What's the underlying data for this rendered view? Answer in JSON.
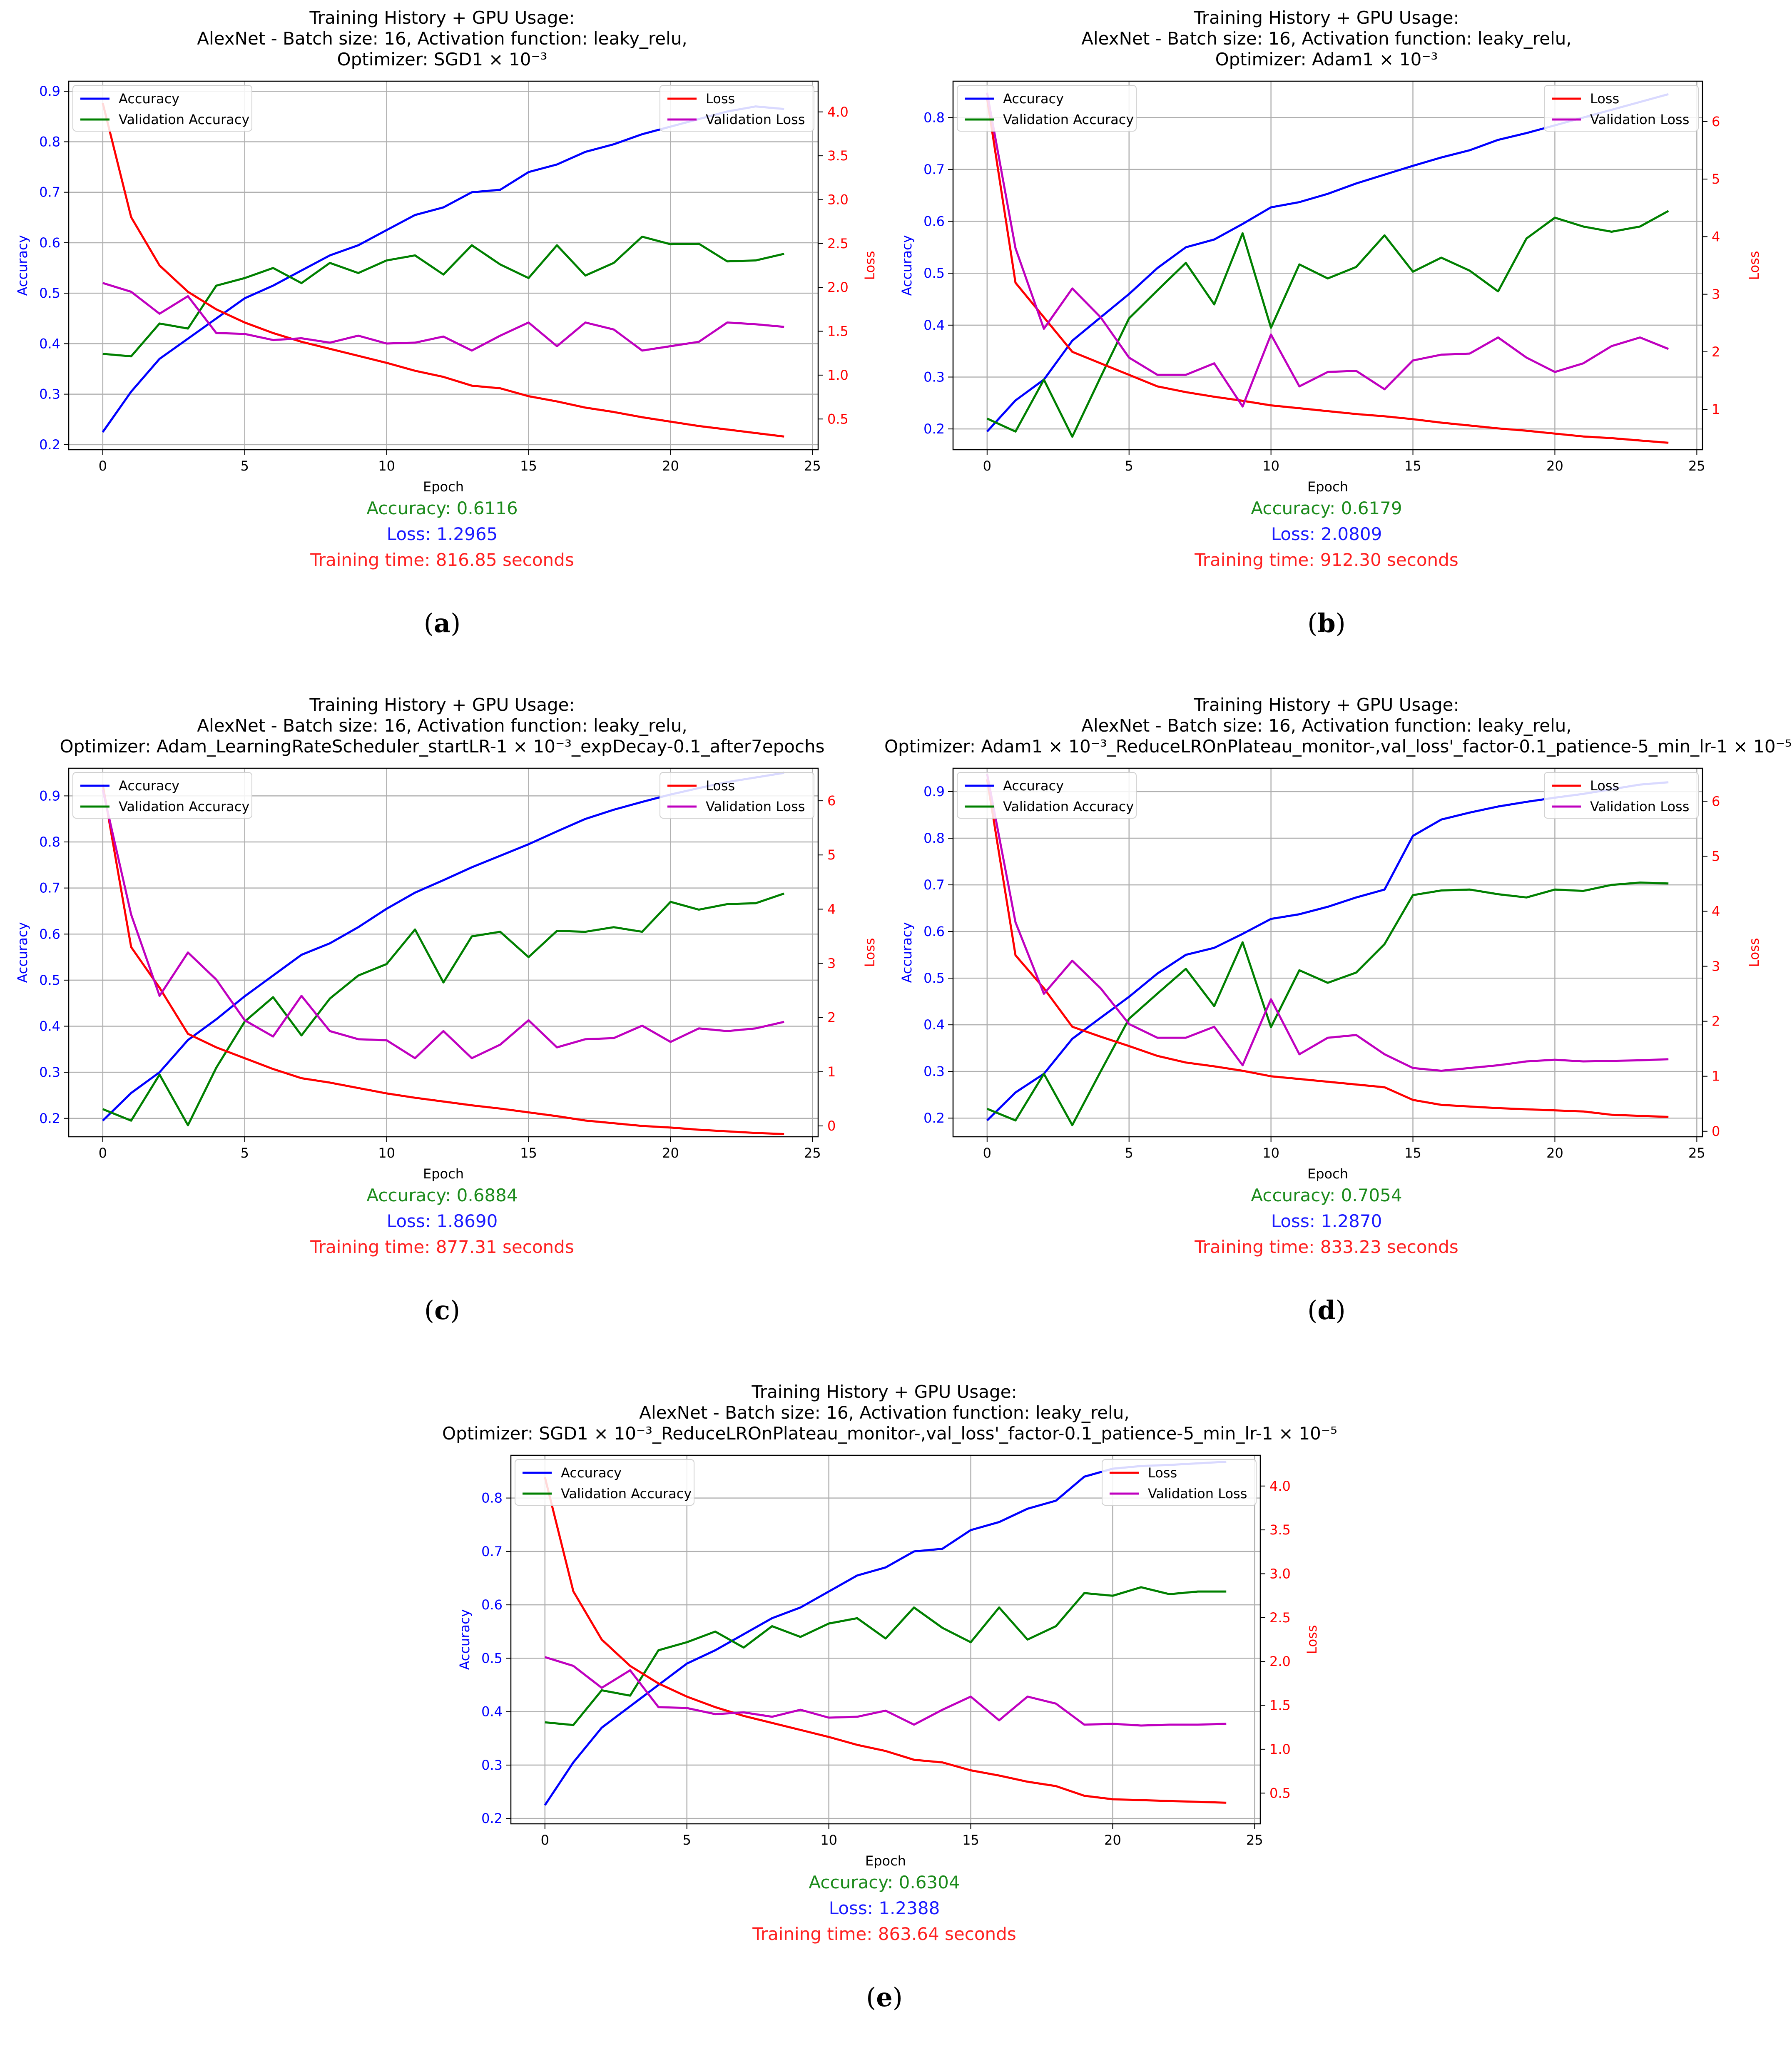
{
  "colors": {
    "accuracy": "#0000ff",
    "val_accuracy": "#008000",
    "loss": "#ff0000",
    "val_loss": "#bf00bf",
    "summary_accuracy": "#1a8a1a",
    "summary_loss": "#1a1aff",
    "summary_time": "#ff2020"
  },
  "panels": [
    {
      "caption_label": "a",
      "title_lines": [
        "Training History + GPU Usage:",
        "AlexNet - Batch size: 16, Activation function: leaky_relu,",
        "Optimizer: SGD1 × 10⁻³"
      ],
      "summary": {
        "accuracy": "Accuracy: 0.6116",
        "loss": "Loss: 1.2965",
        "time": "Training time: 816.85 seconds"
      }
    },
    {
      "caption_label": "b",
      "title_lines": [
        "Training History + GPU Usage:",
        "AlexNet - Batch size: 16, Activation function: leaky_relu,",
        "Optimizer: Adam1 × 10⁻³"
      ],
      "summary": {
        "accuracy": "Accuracy: 0.6179",
        "loss": "Loss: 2.0809",
        "time": "Training time: 912.30 seconds"
      }
    },
    {
      "caption_label": "c",
      "title_lines": [
        "Training History + GPU Usage:",
        "AlexNet - Batch size: 16, Activation function: leaky_relu,",
        "Optimizer: Adam_LearningRateScheduler_startLR-1 × 10⁻³_expDecay-0.1_after7epochs"
      ],
      "summary": {
        "accuracy": "Accuracy: 0.6884",
        "loss": "Loss: 1.8690",
        "time": "Training time: 877.31 seconds"
      }
    },
    {
      "caption_label": "d",
      "title_lines": [
        "Training History + GPU Usage:",
        "AlexNet - Batch size: 16, Activation function: leaky_relu,",
        "Optimizer: Adam1 × 10⁻³_ReduceLROnPlateau_monitor-,val_loss'_factor-0.1_patience-5_min_lr-1 × 10⁻⁵"
      ],
      "summary": {
        "accuracy": "Accuracy: 0.7054",
        "loss": "Loss: 1.2870",
        "time": "Training time: 833.23 seconds"
      }
    },
    {
      "caption_label": "e",
      "title_lines": [
        "Training History + GPU Usage:",
        "AlexNet - Batch size: 16, Activation function: leaky_relu,",
        "Optimizer: SGD1 × 10⁻³_ReduceLROnPlateau_monitor-,val_loss'_factor-0.1_patience-5_min_lr-1 × 10⁻⁵"
      ],
      "summary": {
        "accuracy": "Accuracy: 0.6304",
        "loss": "Loss: 1.2388",
        "time": "Training time: 863.64 seconds"
      }
    }
  ],
  "chart_data": [
    {
      "type": "line",
      "xlabel": "Epoch",
      "ylabel": "Accuracy",
      "y2label": "Loss",
      "xlim": [
        -1.2,
        25.2
      ],
      "xticks": [
        0,
        5,
        10,
        15,
        20,
        25
      ],
      "ylim": [
        0.19,
        0.92
      ],
      "yticks": [
        0.2,
        0.3,
        0.4,
        0.5,
        0.6,
        0.7,
        0.8,
        0.9
      ],
      "y2lim": [
        0.15,
        4.35
      ],
      "y2ticks": [
        0.5,
        1.0,
        1.5,
        2.0,
        2.5,
        3.0,
        3.5,
        4.0
      ],
      "grid": true,
      "legend_left": "top-left",
      "legend_right": "top-right",
      "x": [
        0,
        1,
        2,
        3,
        4,
        5,
        6,
        7,
        8,
        9,
        10,
        11,
        12,
        13,
        14,
        15,
        16,
        17,
        18,
        19,
        20,
        21,
        22,
        23,
        24
      ],
      "series": [
        {
          "name": "Accuracy",
          "axis": "left",
          "color": "#0000ff",
          "values": [
            0.225,
            0.305,
            0.37,
            0.41,
            0.45,
            0.49,
            0.515,
            0.545,
            0.575,
            0.595,
            0.625,
            0.655,
            0.67,
            0.7,
            0.705,
            0.74,
            0.755,
            0.78,
            0.795,
            0.815,
            0.83,
            0.845,
            0.86,
            0.87,
            0.865
          ]
        },
        {
          "name": "Validation Accuracy",
          "axis": "left",
          "color": "#008000",
          "values": [
            0.38,
            0.375,
            0.44,
            0.43,
            0.515,
            0.53,
            0.55,
            0.52,
            0.56,
            0.54,
            0.565,
            0.575,
            0.537,
            0.595,
            0.557,
            0.53,
            0.595,
            0.535,
            0.56,
            0.612,
            0.597,
            0.598,
            0.563,
            0.565,
            0.578
          ]
        },
        {
          "name": "Loss",
          "axis": "right",
          "color": "#ff0000",
          "values": [
            4.1,
            2.8,
            2.25,
            1.95,
            1.75,
            1.6,
            1.48,
            1.38,
            1.3,
            1.22,
            1.14,
            1.05,
            0.98,
            0.88,
            0.85,
            0.76,
            0.7,
            0.63,
            0.58,
            0.52,
            0.47,
            0.42,
            0.38,
            0.34,
            0.3
          ]
        },
        {
          "name": "Validation Loss",
          "axis": "right",
          "color": "#bf00bf",
          "values": [
            2.05,
            1.95,
            1.7,
            1.9,
            1.48,
            1.47,
            1.4,
            1.42,
            1.37,
            1.45,
            1.36,
            1.37,
            1.44,
            1.28,
            1.45,
            1.6,
            1.33,
            1.6,
            1.52,
            1.28,
            1.33,
            1.38,
            1.6,
            1.58,
            1.55
          ]
        }
      ]
    },
    {
      "type": "line",
      "xlabel": "Epoch",
      "ylabel": "Accuracy",
      "y2label": "Loss",
      "xlim": [
        -1.2,
        25.2
      ],
      "xticks": [
        0,
        5,
        10,
        15,
        20,
        25
      ],
      "ylim": [
        0.16,
        0.87
      ],
      "yticks": [
        0.2,
        0.3,
        0.4,
        0.5,
        0.6,
        0.7,
        0.8
      ],
      "y2lim": [
        0.3,
        6.7
      ],
      "y2ticks": [
        1,
        2,
        3,
        4,
        5,
        6
      ],
      "grid": true,
      "legend_left": "top-left",
      "legend_right": "top-right",
      "x": [
        0,
        1,
        2,
        3,
        4,
        5,
        6,
        7,
        8,
        9,
        10,
        11,
        12,
        13,
        14,
        15,
        16,
        17,
        18,
        19,
        20,
        21,
        22,
        23,
        24
      ],
      "series": [
        {
          "name": "Accuracy",
          "axis": "left",
          "color": "#0000ff",
          "values": [
            0.195,
            0.255,
            0.295,
            0.37,
            0.415,
            0.46,
            0.51,
            0.55,
            0.565,
            0.595,
            0.627,
            0.637,
            0.653,
            0.673,
            0.69,
            0.707,
            0.723,
            0.737,
            0.757,
            0.77,
            0.785,
            0.8,
            0.815,
            0.83,
            0.845
          ]
        },
        {
          "name": "Validation Accuracy",
          "axis": "left",
          "color": "#008000",
          "values": [
            0.22,
            0.195,
            0.295,
            0.185,
            0.3,
            0.413,
            0.467,
            0.52,
            0.44,
            0.577,
            0.395,
            0.517,
            0.49,
            0.512,
            0.573,
            0.503,
            0.53,
            0.505,
            0.465,
            0.567,
            0.607,
            0.59,
            0.58,
            0.59,
            0.62
          ]
        },
        {
          "name": "Loss",
          "axis": "right",
          "color": "#ff0000",
          "values": [
            6.4,
            3.2,
            2.6,
            2.0,
            1.8,
            1.6,
            1.4,
            1.3,
            1.22,
            1.15,
            1.07,
            1.02,
            0.97,
            0.92,
            0.88,
            0.83,
            0.77,
            0.72,
            0.67,
            0.63,
            0.58,
            0.53,
            0.5,
            0.46,
            0.42
          ]
        },
        {
          "name": "Validation Loss",
          "axis": "right",
          "color": "#bf00bf",
          "values": [
            6.5,
            3.8,
            2.4,
            3.1,
            2.6,
            1.9,
            1.6,
            1.6,
            1.8,
            1.05,
            2.3,
            1.4,
            1.65,
            1.67,
            1.35,
            1.85,
            1.95,
            1.97,
            2.25,
            1.9,
            1.65,
            1.8,
            2.1,
            2.25,
            2.05
          ]
        }
      ]
    },
    {
      "type": "line",
      "xlabel": "Epoch",
      "ylabel": "Accuracy",
      "y2label": "Loss",
      "xlim": [
        -1.2,
        25.2
      ],
      "xticks": [
        0,
        5,
        10,
        15,
        20,
        25
      ],
      "ylim": [
        0.16,
        0.96
      ],
      "yticks": [
        0.2,
        0.3,
        0.4,
        0.5,
        0.6,
        0.7,
        0.8,
        0.9
      ],
      "y2lim": [
        -0.2,
        6.6
      ],
      "y2ticks": [
        0,
        1,
        2,
        3,
        4,
        5,
        6
      ],
      "grid": true,
      "legend_left": "top-left",
      "legend_right": "top-right",
      "x": [
        0,
        1,
        2,
        3,
        4,
        5,
        6,
        7,
        8,
        9,
        10,
        11,
        12,
        13,
        14,
        15,
        16,
        17,
        18,
        19,
        20,
        21,
        22,
        23,
        24
      ],
      "series": [
        {
          "name": "Accuracy",
          "axis": "left",
          "color": "#0000ff",
          "values": [
            0.195,
            0.255,
            0.3,
            0.37,
            0.415,
            0.465,
            0.51,
            0.555,
            0.58,
            0.615,
            0.655,
            0.69,
            0.717,
            0.745,
            0.77,
            0.795,
            0.823,
            0.85,
            0.87,
            0.887,
            0.903,
            0.917,
            0.93,
            0.94,
            0.95
          ]
        },
        {
          "name": "Validation Accuracy",
          "axis": "left",
          "color": "#008000",
          "values": [
            0.22,
            0.195,
            0.295,
            0.185,
            0.31,
            0.41,
            0.463,
            0.38,
            0.46,
            0.51,
            0.535,
            0.61,
            0.495,
            0.595,
            0.605,
            0.55,
            0.607,
            0.605,
            0.615,
            0.605,
            0.67,
            0.653,
            0.665,
            0.667,
            0.688
          ]
        },
        {
          "name": "Loss",
          "axis": "right",
          "color": "#ff0000",
          "values": [
            6.3,
            3.3,
            2.55,
            1.7,
            1.45,
            1.25,
            1.05,
            0.88,
            0.8,
            0.7,
            0.6,
            0.52,
            0.45,
            0.38,
            0.32,
            0.25,
            0.18,
            0.1,
            0.05,
            0.0,
            -0.03,
            -0.07,
            -0.1,
            -0.13,
            -0.15
          ]
        },
        {
          "name": "Validation Loss",
          "axis": "right",
          "color": "#bf00bf",
          "values": [
            6.2,
            3.9,
            2.4,
            3.2,
            2.7,
            1.95,
            1.65,
            2.4,
            1.75,
            1.6,
            1.58,
            1.25,
            1.75,
            1.25,
            1.5,
            1.95,
            1.45,
            1.6,
            1.62,
            1.85,
            1.55,
            1.8,
            1.75,
            1.8,
            1.92
          ]
        }
      ]
    },
    {
      "type": "line",
      "xlabel": "Epoch",
      "ylabel": "Accuracy",
      "y2label": "Loss",
      "xlim": [
        -1.2,
        25.2
      ],
      "xticks": [
        0,
        5,
        10,
        15,
        20,
        25
      ],
      "ylim": [
        0.16,
        0.95
      ],
      "yticks": [
        0.2,
        0.3,
        0.4,
        0.5,
        0.6,
        0.7,
        0.8,
        0.9
      ],
      "y2lim": [
        -0.1,
        6.6
      ],
      "y2ticks": [
        0,
        1,
        2,
        3,
        4,
        5,
        6
      ],
      "grid": true,
      "legend_left": "top-left",
      "legend_right": "top-right",
      "x": [
        0,
        1,
        2,
        3,
        4,
        5,
        6,
        7,
        8,
        9,
        10,
        11,
        12,
        13,
        14,
        15,
        16,
        17,
        18,
        19,
        20,
        21,
        22,
        23,
        24
      ],
      "series": [
        {
          "name": "Accuracy",
          "axis": "left",
          "color": "#0000ff",
          "values": [
            0.195,
            0.255,
            0.295,
            0.37,
            0.415,
            0.46,
            0.51,
            0.55,
            0.565,
            0.595,
            0.627,
            0.637,
            0.653,
            0.673,
            0.69,
            0.805,
            0.84,
            0.855,
            0.868,
            0.878,
            0.887,
            0.895,
            0.905,
            0.915,
            0.92
          ]
        },
        {
          "name": "Validation Accuracy",
          "axis": "left",
          "color": "#008000",
          "values": [
            0.22,
            0.195,
            0.295,
            0.185,
            0.3,
            0.413,
            0.467,
            0.52,
            0.44,
            0.577,
            0.395,
            0.517,
            0.49,
            0.512,
            0.573,
            0.678,
            0.688,
            0.69,
            0.68,
            0.673,
            0.69,
            0.687,
            0.7,
            0.705,
            0.703
          ]
        },
        {
          "name": "Loss",
          "axis": "right",
          "color": "#ff0000",
          "values": [
            6.4,
            3.2,
            2.6,
            1.9,
            1.72,
            1.55,
            1.37,
            1.25,
            1.18,
            1.1,
            1.0,
            0.95,
            0.9,
            0.85,
            0.8,
            0.57,
            0.48,
            0.45,
            0.42,
            0.4,
            0.38,
            0.36,
            0.3,
            0.28,
            0.26
          ]
        },
        {
          "name": "Validation Loss",
          "axis": "right",
          "color": "#bf00bf",
          "values": [
            6.5,
            3.8,
            2.5,
            3.1,
            2.6,
            1.95,
            1.7,
            1.7,
            1.9,
            1.2,
            2.4,
            1.4,
            1.7,
            1.75,
            1.4,
            1.15,
            1.1,
            1.15,
            1.2,
            1.27,
            1.3,
            1.27,
            1.28,
            1.29,
            1.31
          ]
        }
      ]
    },
    {
      "type": "line",
      "xlabel": "Epoch",
      "ylabel": "Accuracy",
      "y2label": "Loss",
      "xlim": [
        -1.2,
        25.2
      ],
      "xticks": [
        0,
        5,
        10,
        15,
        20,
        25
      ],
      "ylim": [
        0.19,
        0.88
      ],
      "yticks": [
        0.2,
        0.3,
        0.4,
        0.5,
        0.6,
        0.7,
        0.8
      ],
      "y2lim": [
        0.15,
        4.35
      ],
      "y2ticks": [
        0.5,
        1.0,
        1.5,
        2.0,
        2.5,
        3.0,
        3.5,
        4.0
      ],
      "grid": true,
      "legend_left": "top-left",
      "legend_right": "top-right",
      "x": [
        0,
        1,
        2,
        3,
        4,
        5,
        6,
        7,
        8,
        9,
        10,
        11,
        12,
        13,
        14,
        15,
        16,
        17,
        18,
        19,
        20,
        21,
        22,
        23,
        24
      ],
      "series": [
        {
          "name": "Accuracy",
          "axis": "left",
          "color": "#0000ff",
          "values": [
            0.225,
            0.305,
            0.37,
            0.41,
            0.45,
            0.49,
            0.515,
            0.545,
            0.575,
            0.595,
            0.625,
            0.655,
            0.67,
            0.7,
            0.705,
            0.74,
            0.755,
            0.78,
            0.795,
            0.84,
            0.855,
            0.86,
            0.862,
            0.865,
            0.868
          ]
        },
        {
          "name": "Validation Accuracy",
          "axis": "left",
          "color": "#008000",
          "values": [
            0.38,
            0.375,
            0.44,
            0.43,
            0.515,
            0.53,
            0.55,
            0.52,
            0.56,
            0.54,
            0.565,
            0.575,
            0.537,
            0.595,
            0.557,
            0.53,
            0.595,
            0.535,
            0.56,
            0.622,
            0.617,
            0.633,
            0.62,
            0.625,
            0.625
          ]
        },
        {
          "name": "Loss",
          "axis": "right",
          "color": "#ff0000",
          "values": [
            4.1,
            2.8,
            2.25,
            1.95,
            1.75,
            1.6,
            1.48,
            1.38,
            1.3,
            1.22,
            1.14,
            1.05,
            0.98,
            0.88,
            0.85,
            0.76,
            0.7,
            0.63,
            0.58,
            0.47,
            0.43,
            0.42,
            0.41,
            0.4,
            0.39
          ]
        },
        {
          "name": "Validation Loss",
          "axis": "right",
          "color": "#bf00bf",
          "values": [
            2.05,
            1.95,
            1.7,
            1.9,
            1.48,
            1.47,
            1.4,
            1.42,
            1.37,
            1.45,
            1.36,
            1.37,
            1.44,
            1.28,
            1.45,
            1.6,
            1.33,
            1.6,
            1.52,
            1.28,
            1.29,
            1.27,
            1.28,
            1.28,
            1.29
          ]
        }
      ]
    }
  ]
}
